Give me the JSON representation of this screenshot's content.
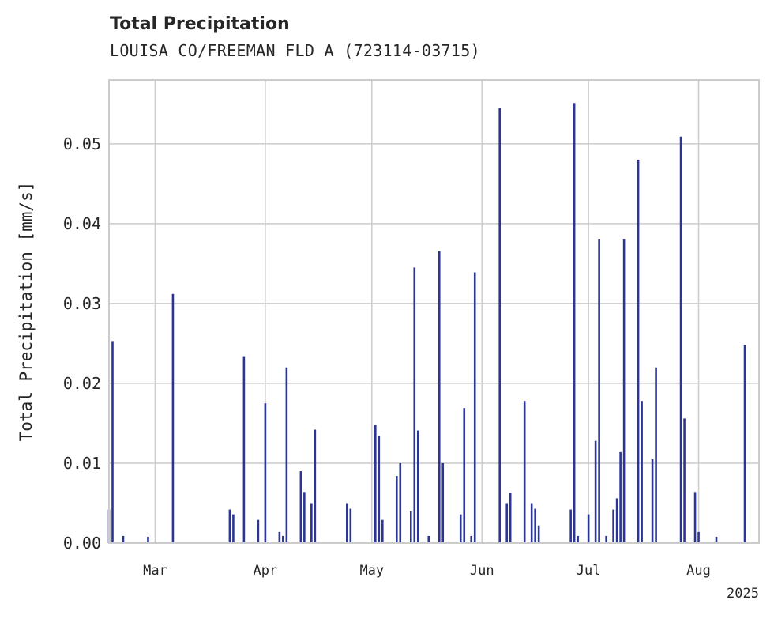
{
  "header": {
    "title": "Total Precipitation",
    "subtitle": "LOUISA CO/FREEMAN FLD A (723114-03715)"
  },
  "chart_data": {
    "type": "bar",
    "title": "Total Precipitation",
    "subtitle": "LOUISA CO/FREEMAN FLD A (723114-03715)",
    "xlabel": "",
    "ylabel": "Total Precipitation [mm/s]",
    "x_range": [
      "2025-02-16",
      "2025-08-18"
    ],
    "ylim": [
      0,
      0.058
    ],
    "y_ticks": [
      0.0,
      0.01,
      0.02,
      0.03,
      0.04,
      0.05
    ],
    "y_tick_labels": [
      "0.00",
      "0.01",
      "0.02",
      "0.03",
      "0.04",
      "0.05"
    ],
    "x_ticks": [
      "2025-03-01",
      "2025-04-01",
      "2025-05-01",
      "2025-06-01",
      "2025-07-01",
      "2025-08-01"
    ],
    "x_tick_labels": [
      "Mar",
      "Apr",
      "May",
      "Jun",
      "Jul",
      "Aug"
    ],
    "x_offset_label": "2025",
    "grid": true,
    "color": "#2b3593",
    "series": [
      {
        "x": [
          "2025-02-16",
          "2025-02-17",
          "2025-02-20",
          "2025-02-27",
          "2025-03-06",
          "2025-03-22",
          "2025-03-23",
          "2025-03-26",
          "2025-03-30",
          "2025-04-01",
          "2025-04-05",
          "2025-04-06",
          "2025-04-07",
          "2025-04-11",
          "2025-04-12",
          "2025-04-14",
          "2025-04-15",
          "2025-04-24",
          "2025-04-25",
          "2025-05-02",
          "2025-05-03",
          "2025-05-04",
          "2025-05-08",
          "2025-05-09",
          "2025-05-12",
          "2025-05-13",
          "2025-05-14",
          "2025-05-17",
          "2025-05-20",
          "2025-05-21",
          "2025-05-26",
          "2025-05-27",
          "2025-05-29",
          "2025-05-30",
          "2025-06-06",
          "2025-06-08",
          "2025-06-09",
          "2025-06-13",
          "2025-06-15",
          "2025-06-16",
          "2025-06-17",
          "2025-06-26",
          "2025-06-27",
          "2025-06-28",
          "2025-07-01",
          "2025-07-03",
          "2025-07-04",
          "2025-07-06",
          "2025-07-08",
          "2025-07-09",
          "2025-07-10",
          "2025-07-11",
          "2025-07-15",
          "2025-07-16",
          "2025-07-19",
          "2025-07-20",
          "2025-07-27",
          "2025-07-28",
          "2025-07-31",
          "2025-08-01",
          "2025-08-06",
          "2025-08-14"
        ],
        "values": [
          0.0042,
          0.0253,
          0.0009,
          0.0008,
          0.0312,
          0.0042,
          0.0036,
          0.0234,
          0.0029,
          0.0175,
          0.0014,
          0.0009,
          0.022,
          0.009,
          0.0064,
          0.005,
          0.0142,
          0.005,
          0.0043,
          0.0148,
          0.0134,
          0.0029,
          0.0084,
          0.01,
          0.004,
          0.0345,
          0.0141,
          0.0009,
          0.0366,
          0.01,
          0.0036,
          0.0169,
          0.0009,
          0.0339,
          0.0545,
          0.005,
          0.0063,
          0.0178,
          0.005,
          0.0043,
          0.0022,
          0.0042,
          0.0551,
          0.0009,
          0.0036,
          0.0128,
          0.0381,
          0.0009,
          0.0042,
          0.0056,
          0.0114,
          0.0381,
          0.048,
          0.0178,
          0.0105,
          0.022,
          0.0509,
          0.0156,
          0.0064,
          0.0014,
          0.0008,
          0.0248
        ]
      }
    ]
  }
}
